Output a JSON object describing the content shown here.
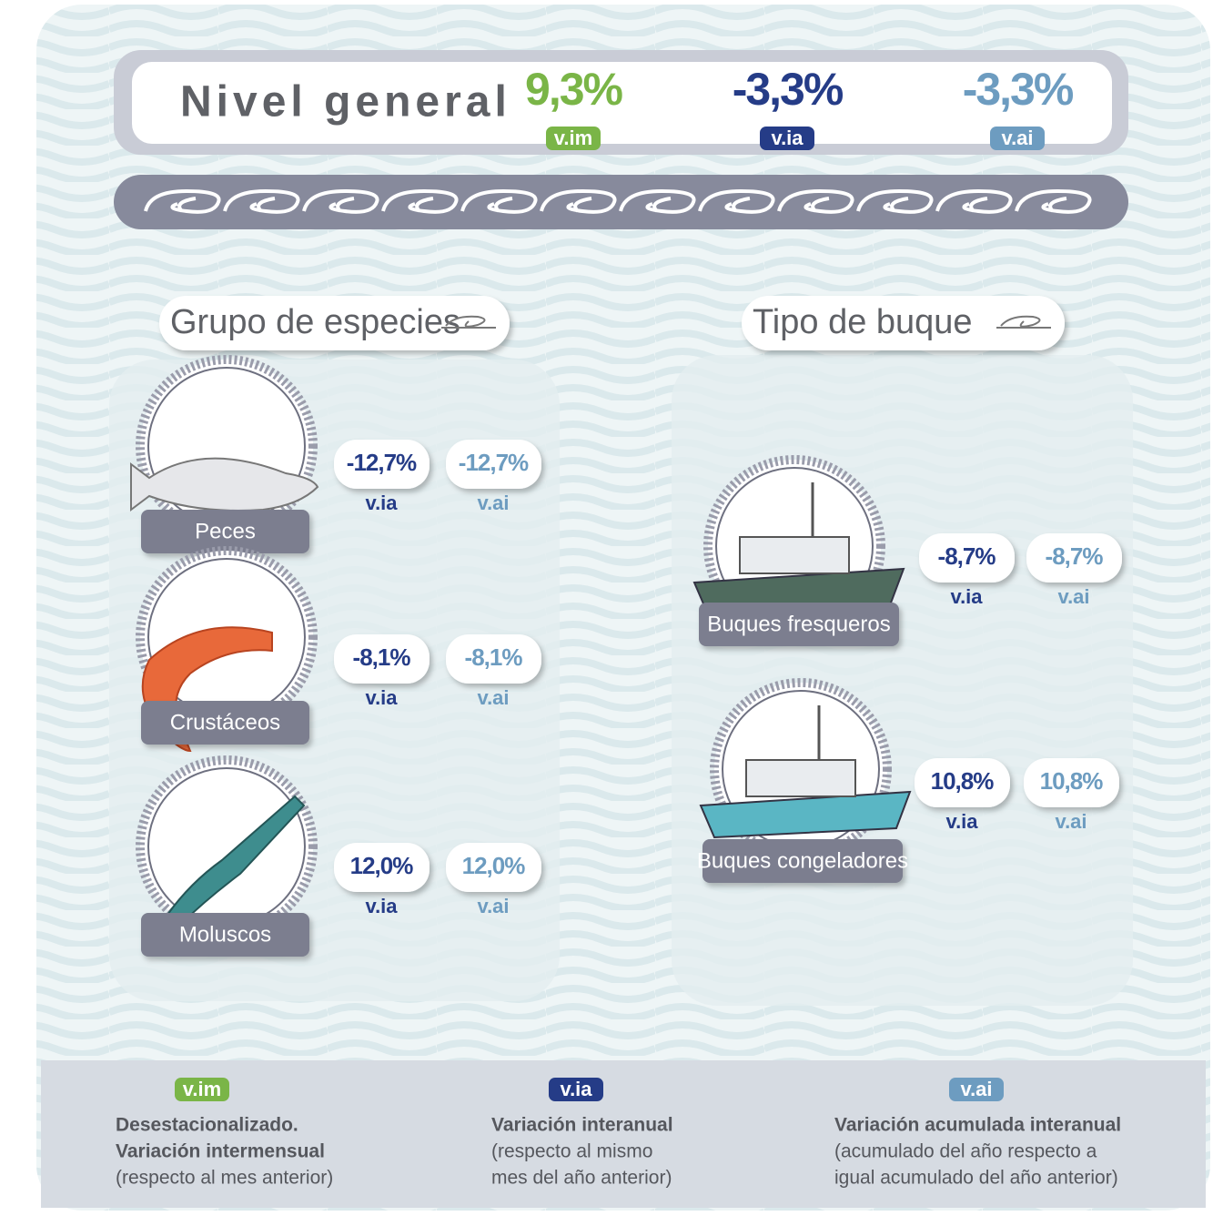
{
  "header": {
    "title": "Nivel general",
    "indicators": [
      {
        "value": "9,3%",
        "tag": "v.im"
      },
      {
        "value": "-3,3%",
        "tag": "v.ia"
      },
      {
        "value": "-3,3%",
        "tag": "v.ai"
      }
    ]
  },
  "sections": [
    {
      "title": "Grupo de especies",
      "items": [
        {
          "label": "Peces",
          "via": "-12,7%",
          "via_tag": "v.ia",
          "vai": "-12,7%",
          "vai_tag": "v.ai"
        },
        {
          "label": "Crustáceos",
          "via": "-8,1%",
          "via_tag": "v.ia",
          "vai": "-8,1%",
          "vai_tag": "v.ai"
        },
        {
          "label": "Moluscos",
          "via": "12,0%",
          "via_tag": "v.ia",
          "vai": "12,0%",
          "vai_tag": "v.ai"
        }
      ]
    },
    {
      "title": "Tipo de buque",
      "items": [
        {
          "label": "Buques fresqueros",
          "via": "-8,7%",
          "via_tag": "v.ia",
          "vai": "-8,7%",
          "vai_tag": "v.ai"
        },
        {
          "label": "Buques congeladores",
          "via": "10,8%",
          "via_tag": "v.ia",
          "vai": "10,8%",
          "vai_tag": "v.ai"
        }
      ]
    }
  ],
  "legend": [
    {
      "tag": "v.im",
      "lines": [
        "Desestacionalizado.",
        "Variación intermensual",
        "(respecto al mes anterior)"
      ]
    },
    {
      "tag": "v.ia",
      "lines": [
        "Variación interanual",
        "(respecto al mismo",
        "mes del año anterior)"
      ]
    },
    {
      "tag": "v.ai",
      "lines": [
        "Variación acumulada interanual",
        "(acumulado del año respecto a",
        "igual acumulado del año anterior)"
      ]
    }
  ]
}
